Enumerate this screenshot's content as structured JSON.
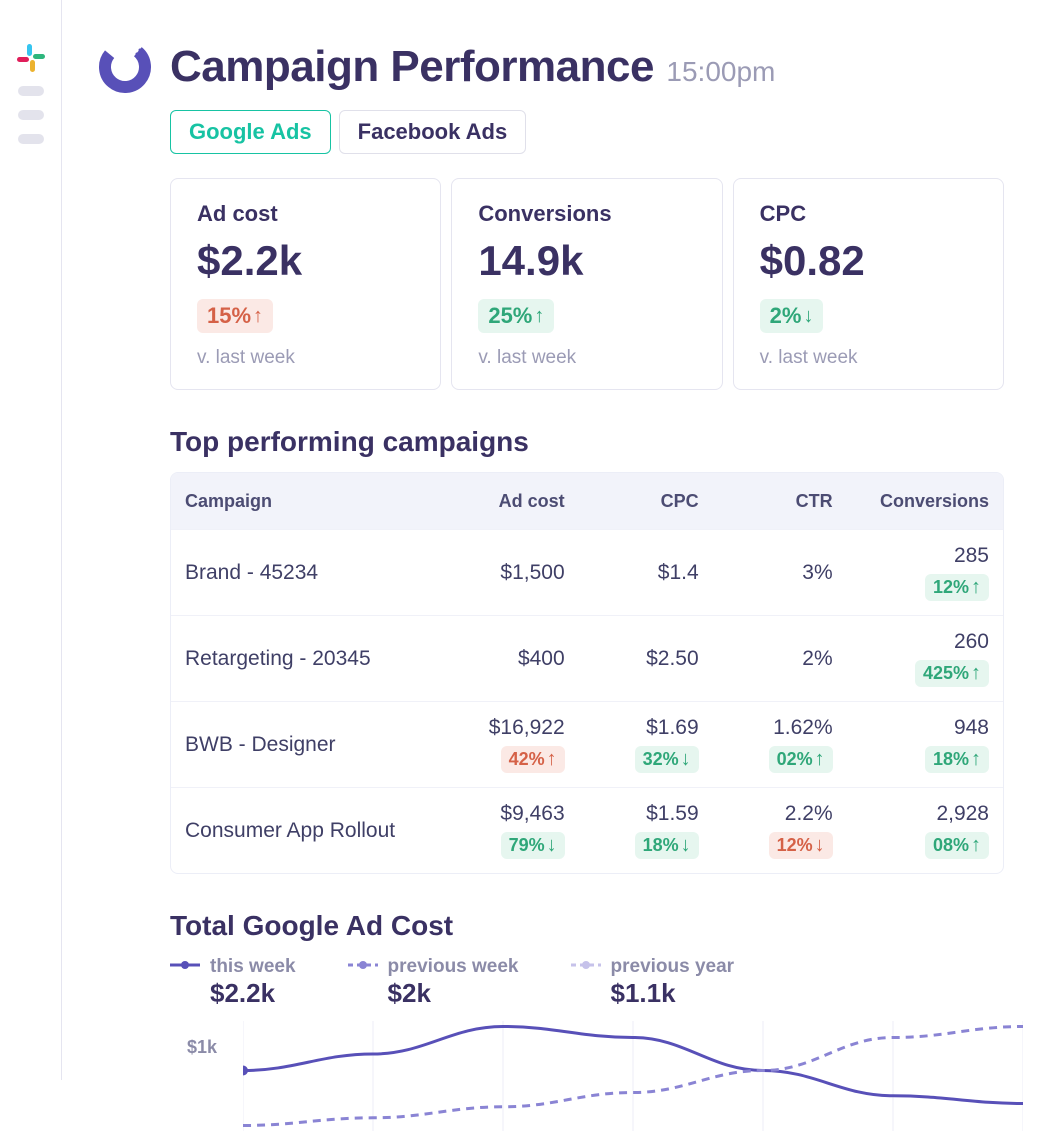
{
  "colors": {
    "accent_purple": "#5850b8",
    "text_dark": "#3a3163",
    "text_muted": "#9b9bb5",
    "border": "#e5e5f0",
    "chip_green_bg": "#e6f6ef",
    "chip_green_fg": "#2fa779",
    "chip_red_bg": "#fbe9e5",
    "chip_red_fg": "#d56147",
    "table_head_bg": "#f2f3fa",
    "tab_active": "#17c3a3"
  },
  "header": {
    "title": "Campaign Performance",
    "time": "15:00pm"
  },
  "tabs": [
    {
      "id": "google",
      "label": "Google Ads",
      "active": true
    },
    {
      "id": "facebook",
      "label": "Facebook Ads",
      "active": false
    }
  ],
  "kpis": [
    {
      "id": "adcost",
      "label": "Ad cost",
      "value": "$2.2k",
      "delta": "15%",
      "direction": "up",
      "tone": "red",
      "sub": "v. last week"
    },
    {
      "id": "conv",
      "label": "Conversions",
      "value": "14.9k",
      "delta": "25%",
      "direction": "up",
      "tone": "green",
      "sub": "v. last week"
    },
    {
      "id": "cpc",
      "label": "CPC",
      "value": "$0.82",
      "delta": "2%",
      "direction": "down",
      "tone": "green",
      "sub": "v. last week"
    }
  ],
  "campaigns_section_title": "Top performing campaigns",
  "campaigns_table": {
    "columns": [
      "Campaign",
      "Ad cost",
      "CPC",
      "CTR",
      "Conversions"
    ],
    "rows": [
      {
        "name": "Brand - 45234",
        "adcost": {
          "value": "$1,500"
        },
        "cpc": {
          "value": "$1.4"
        },
        "ctr": {
          "value": "3%"
        },
        "conv": {
          "value": "285",
          "delta": "12%",
          "direction": "up",
          "tone": "green"
        }
      },
      {
        "name": "Retargeting - 20345",
        "adcost": {
          "value": "$400"
        },
        "cpc": {
          "value": "$2.50"
        },
        "ctr": {
          "value": "2%"
        },
        "conv": {
          "value": "260",
          "delta": "425%",
          "direction": "up",
          "tone": "green"
        }
      },
      {
        "name": "BWB - Designer",
        "adcost": {
          "value": "$16,922",
          "delta": "42%",
          "direction": "up",
          "tone": "red"
        },
        "cpc": {
          "value": "$1.69",
          "delta": "32%",
          "direction": "down",
          "tone": "green"
        },
        "ctr": {
          "value": "1.62%",
          "delta": "02%",
          "direction": "up",
          "tone": "green"
        },
        "conv": {
          "value": "948",
          "delta": "18%",
          "direction": "up",
          "tone": "green"
        }
      },
      {
        "name": "Consumer App Rollout",
        "adcost": {
          "value": "$9,463",
          "delta": "79%",
          "direction": "down",
          "tone": "green"
        },
        "cpc": {
          "value": "$1.59",
          "delta": "18%",
          "direction": "down",
          "tone": "green"
        },
        "ctr": {
          "value": "2.2%",
          "delta": "12%",
          "direction": "down",
          "tone": "red"
        },
        "conv": {
          "value": "2,928",
          "delta": "08%",
          "direction": "up",
          "tone": "green"
        }
      }
    ]
  },
  "cost_section_title": "Total Google Ad Cost",
  "cost_chart": {
    "type": "line",
    "y_tick_label": "$1k",
    "x_gridlines": 7,
    "legend": [
      {
        "id": "this",
        "label": "this week",
        "amount": "$2.2k",
        "style": "solid",
        "color": "#5850b8",
        "opacity": 1.0
      },
      {
        "id": "prev_week",
        "label": "previous week",
        "amount": "$2k",
        "style": "dashed",
        "color": "#8a84d4",
        "opacity": 0.9
      },
      {
        "id": "prev_year",
        "label": "previous year",
        "amount": "$1.1k",
        "style": "dashed",
        "color": "#c6c2ea",
        "opacity": 0.9
      }
    ],
    "series": {
      "this_week": {
        "points": [
          0.55,
          0.7,
          0.95,
          0.85,
          0.55,
          0.32,
          0.25
        ],
        "color": "#5850b8",
        "style": "solid",
        "width": 3
      },
      "prev_week": {
        "points": [
          0.05,
          0.12,
          0.22,
          0.35,
          0.55,
          0.85,
          0.95
        ],
        "color": "#8a84d4",
        "style": "dashed",
        "width": 3
      }
    }
  }
}
